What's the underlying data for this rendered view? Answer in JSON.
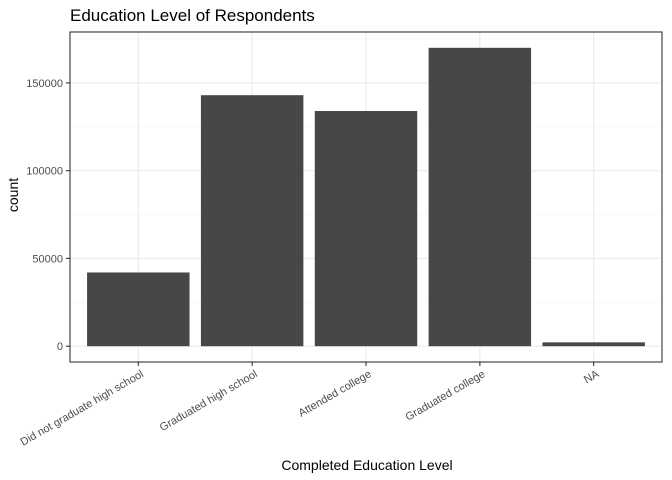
{
  "chart_data": {
    "type": "bar",
    "title": "Education Level of Respondents",
    "xlabel": "Completed Education Level",
    "ylabel": "count",
    "categories": [
      "Did not graduate high school",
      "Graduated high school",
      "Attended college",
      "Graduated college",
      "NA"
    ],
    "values": [
      42000,
      143000,
      134000,
      170000,
      2200
    ],
    "ylim": [
      -9000,
      179000
    ],
    "yticks": [
      0,
      50000,
      100000,
      150000
    ],
    "ytick_labels": [
      "0",
      "50000",
      "100000",
      "150000"
    ],
    "grid": true,
    "colors": {
      "bar": "#474747",
      "panel_border": "#333333",
      "grid_major": "#ebebeb",
      "grid_minor": "#f5f5f5",
      "tick_label": "#4d4d4d"
    }
  }
}
